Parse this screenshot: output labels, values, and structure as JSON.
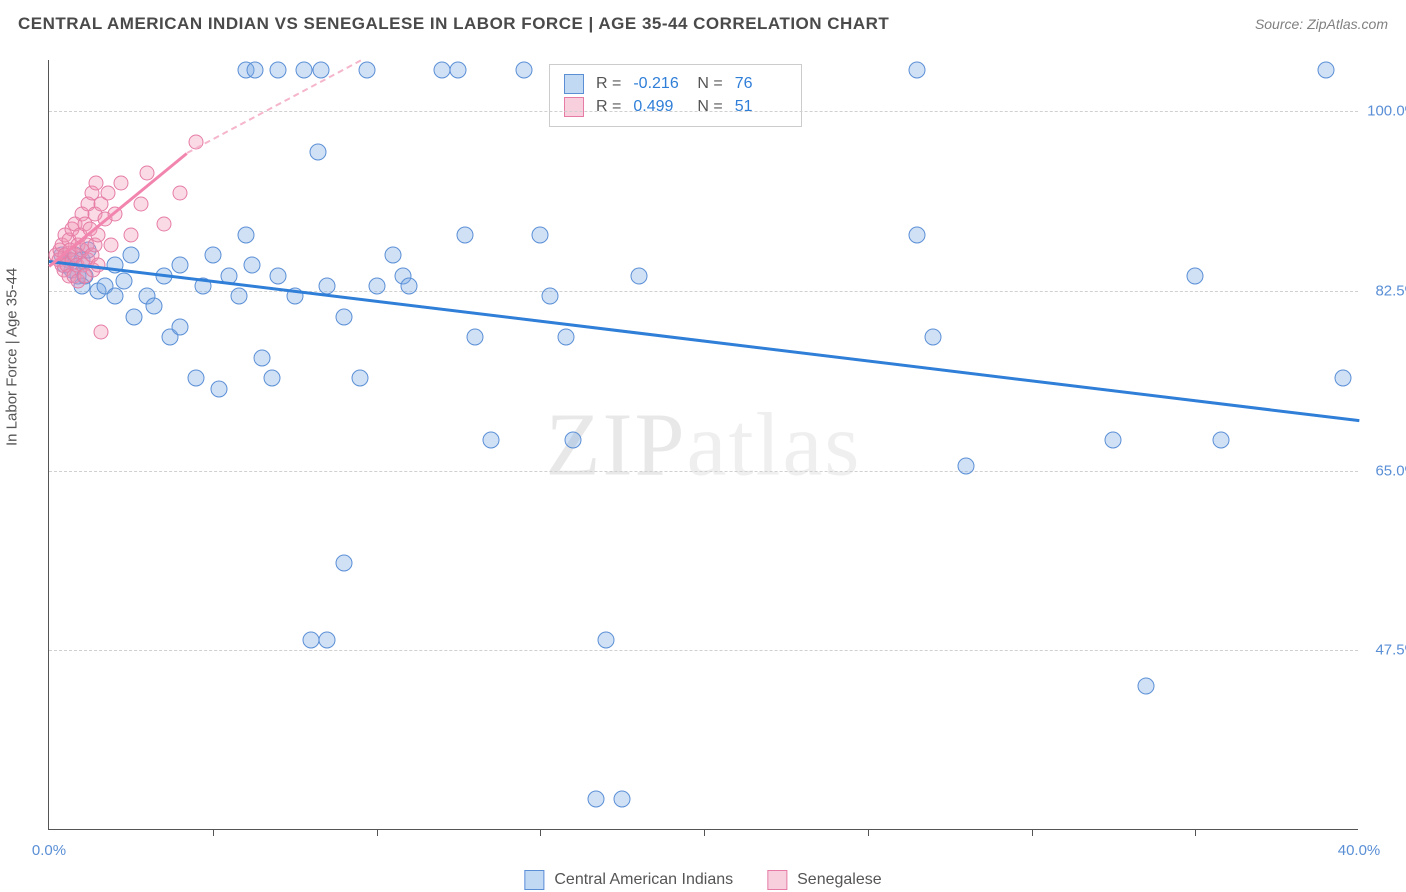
{
  "title": "CENTRAL AMERICAN INDIAN VS SENEGALESE IN LABOR FORCE | AGE 35-44 CORRELATION CHART",
  "source_label": "Source: ZipAtlas.com",
  "y_axis_label": "In Labor Force | Age 35-44",
  "watermark_a": "ZIP",
  "watermark_b": "atlas",
  "chart": {
    "type": "scatter",
    "xlim": [
      0,
      40
    ],
    "ylim": [
      30,
      105
    ],
    "x_ticks": [
      0,
      40
    ],
    "x_tick_marks": [
      5,
      10,
      15,
      20,
      25,
      30,
      35
    ],
    "y_ticks": [
      47.5,
      65.0,
      82.5,
      100.0
    ],
    "x_tick_fmt": "0.0%",
    "y_tick_fmt": "0.0%",
    "background_color": "#ffffff",
    "grid_color": "#d0d0d0",
    "point_radius_blue": 8.5,
    "point_radius_pink": 7.5,
    "colors": {
      "blue_stroke": "#5a8fd6",
      "blue_fill": "rgba(120,170,230,0.35)",
      "pink_stroke": "#e67ca5",
      "pink_fill": "rgba(240,150,180,0.35)",
      "trend_blue": "#2f7ed8",
      "trend_pink": "#f285ae",
      "trend_pink_dash": "#f5b5cc",
      "axis_text": "#5a8fd6"
    },
    "series": [
      {
        "key": "cai",
        "label": "Central American Indians",
        "color_class": "pt-blue",
        "R": "-0.216",
        "N": "76",
        "trend": {
          "x1": 0,
          "y1": 85.5,
          "x2": 40,
          "y2": 70.0,
          "class": "trend-blue"
        },
        "points": [
          [
            0.4,
            86
          ],
          [
            0.5,
            85
          ],
          [
            0.6,
            85.5
          ],
          [
            0.7,
            84.5
          ],
          [
            0.8,
            86
          ],
          [
            0.9,
            84
          ],
          [
            1.0,
            85.5
          ],
          [
            1.1,
            84
          ],
          [
            1.2,
            86.5
          ],
          [
            1.0,
            83
          ],
          [
            1.5,
            82.5
          ],
          [
            1.7,
            83
          ],
          [
            2.0,
            85
          ],
          [
            2.0,
            82
          ],
          [
            2.3,
            83.5
          ],
          [
            2.5,
            86
          ],
          [
            2.6,
            80
          ],
          [
            3.0,
            82
          ],
          [
            3.2,
            81
          ],
          [
            3.5,
            84
          ],
          [
            3.7,
            78
          ],
          [
            4.0,
            85
          ],
          [
            4.0,
            79
          ],
          [
            4.5,
            74
          ],
          [
            4.7,
            83
          ],
          [
            5.0,
            86
          ],
          [
            5.2,
            73
          ],
          [
            5.5,
            84
          ],
          [
            5.8,
            82
          ],
          [
            6.0,
            88
          ],
          [
            6.2,
            85
          ],
          [
            6.0,
            104
          ],
          [
            6.3,
            104
          ],
          [
            6.5,
            76
          ],
          [
            6.8,
            74
          ],
          [
            7.0,
            84
          ],
          [
            7.0,
            104
          ],
          [
            7.5,
            82
          ],
          [
            7.8,
            104
          ],
          [
            8.0,
            48.5
          ],
          [
            8.2,
            96
          ],
          [
            8.3,
            104
          ],
          [
            8.5,
            83
          ],
          [
            8.5,
            48.5
          ],
          [
            9.0,
            80
          ],
          [
            9.0,
            56
          ],
          [
            9.5,
            74
          ],
          [
            9.7,
            104
          ],
          [
            10.0,
            83
          ],
          [
            10.5,
            86
          ],
          [
            10.8,
            84
          ],
          [
            11.0,
            83
          ],
          [
            12.0,
            104
          ],
          [
            12.5,
            104
          ],
          [
            12.7,
            88
          ],
          [
            13.0,
            78
          ],
          [
            13.5,
            68
          ],
          [
            14.5,
            104
          ],
          [
            15.0,
            88
          ],
          [
            15.3,
            82
          ],
          [
            15.8,
            78
          ],
          [
            16.0,
            68
          ],
          [
            16.7,
            33
          ],
          [
            17.0,
            48.5
          ],
          [
            17.5,
            33
          ],
          [
            18.0,
            84
          ],
          [
            26.5,
            104
          ],
          [
            26.5,
            88
          ],
          [
            27.0,
            78
          ],
          [
            28.0,
            65.5
          ],
          [
            32.5,
            68
          ],
          [
            33.5,
            44
          ],
          [
            35.0,
            84
          ],
          [
            35.8,
            68
          ],
          [
            39.5,
            74
          ],
          [
            39.0,
            104
          ]
        ]
      },
      {
        "key": "sen",
        "label": "Senegalese",
        "color_class": "pt-pink",
        "R": "0.499",
        "N": "51",
        "trend": {
          "x1": 0,
          "y1": 85,
          "x2": 4.2,
          "y2": 96,
          "class": "trend-pink"
        },
        "trend_dash": {
          "x1": 4.2,
          "y1": 96,
          "x2": 9.5,
          "y2": 105
        },
        "points": [
          [
            0.2,
            86
          ],
          [
            0.3,
            85.5
          ],
          [
            0.35,
            86.5
          ],
          [
            0.4,
            85
          ],
          [
            0.4,
            87
          ],
          [
            0.45,
            84.5
          ],
          [
            0.5,
            86
          ],
          [
            0.5,
            88
          ],
          [
            0.55,
            85
          ],
          [
            0.6,
            87.5
          ],
          [
            0.6,
            84
          ],
          [
            0.65,
            86.5
          ],
          [
            0.7,
            85.5
          ],
          [
            0.7,
            88.5
          ],
          [
            0.75,
            84
          ],
          [
            0.8,
            86
          ],
          [
            0.8,
            89
          ],
          [
            0.85,
            85
          ],
          [
            0.9,
            87
          ],
          [
            0.9,
            83.5
          ],
          [
            0.95,
            88
          ],
          [
            1.0,
            86.5
          ],
          [
            1.0,
            90
          ],
          [
            1.05,
            85
          ],
          [
            1.1,
            89
          ],
          [
            1.1,
            84
          ],
          [
            1.15,
            87
          ],
          [
            1.2,
            91
          ],
          [
            1.2,
            85.5
          ],
          [
            1.25,
            88.5
          ],
          [
            1.3,
            86
          ],
          [
            1.3,
            92
          ],
          [
            1.35,
            84.5
          ],
          [
            1.4,
            90
          ],
          [
            1.4,
            87
          ],
          [
            1.45,
            93
          ],
          [
            1.5,
            88
          ],
          [
            1.5,
            85
          ],
          [
            1.6,
            91
          ],
          [
            1.6,
            78.5
          ],
          [
            1.7,
            89.5
          ],
          [
            1.8,
            92
          ],
          [
            1.9,
            87
          ],
          [
            2.0,
            90
          ],
          [
            2.2,
            93
          ],
          [
            2.5,
            88
          ],
          [
            2.8,
            91
          ],
          [
            3.0,
            94
          ],
          [
            3.5,
            89
          ],
          [
            4.0,
            92
          ],
          [
            4.5,
            97
          ]
        ]
      }
    ]
  },
  "stats_box": {
    "rows": [
      {
        "sw": "sw-blue",
        "R": "-0.216",
        "N": "76"
      },
      {
        "sw": "sw-pink",
        "R": "0.499",
        "N": "51"
      }
    ]
  },
  "bottom_legend": [
    {
      "sw": "sw-blue",
      "label": "Central American Indians"
    },
    {
      "sw": "sw-pink",
      "label": "Senegalese"
    }
  ]
}
